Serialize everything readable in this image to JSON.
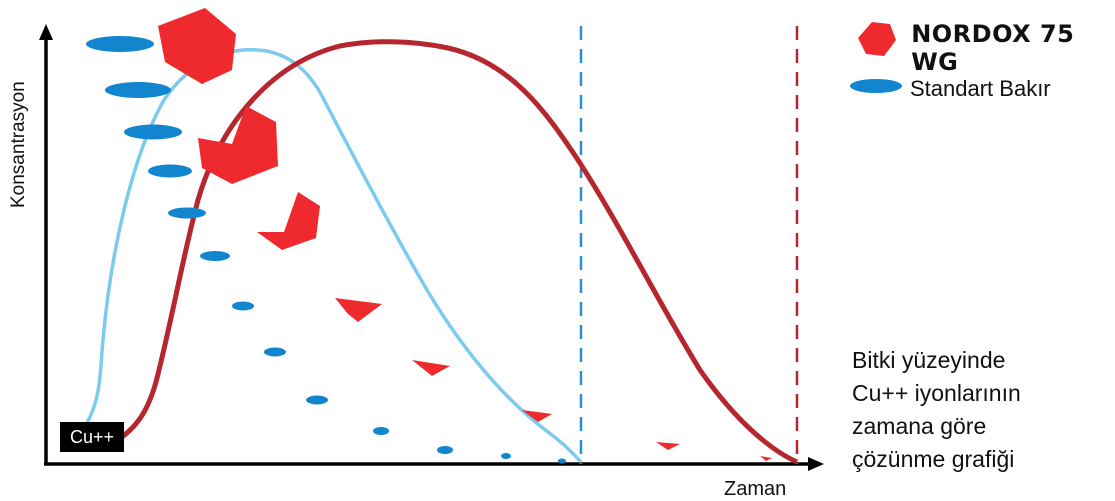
{
  "chart_data": {
    "type": "line",
    "xlabel": "Zaman",
    "ylabel": "Konsantrasyon",
    "grid": false,
    "legend_position": "top-right",
    "series": [
      {
        "name": "NORDOX 75 WG",
        "color": "#b5262e",
        "marker": "red-polygon-icon"
      },
      {
        "name": "Standart Bakır",
        "color": "#7ccbee",
        "marker": "blue-ellipse-icon"
      }
    ],
    "reference_lines": [
      {
        "series": "Standart Bakır",
        "color": "#2b92c9",
        "style": "dashed"
      },
      {
        "series": "NORDOX 75 WG",
        "color": "#b5262e",
        "style": "dashed"
      }
    ]
  },
  "badge": {
    "label": "Cu++"
  },
  "legend": {
    "nordox_label": "NORDOX 75 WG",
    "standard_label": "Standart Bakır"
  },
  "caption": {
    "lines": [
      "Bitki yüzeyinde",
      "Cu++ iyonlarının",
      "zamana göre",
      "çözünme grafiği"
    ]
  },
  "colors": {
    "nordox": "#ee2a2f",
    "standard": "#1186cf",
    "axis": "#000000"
  }
}
